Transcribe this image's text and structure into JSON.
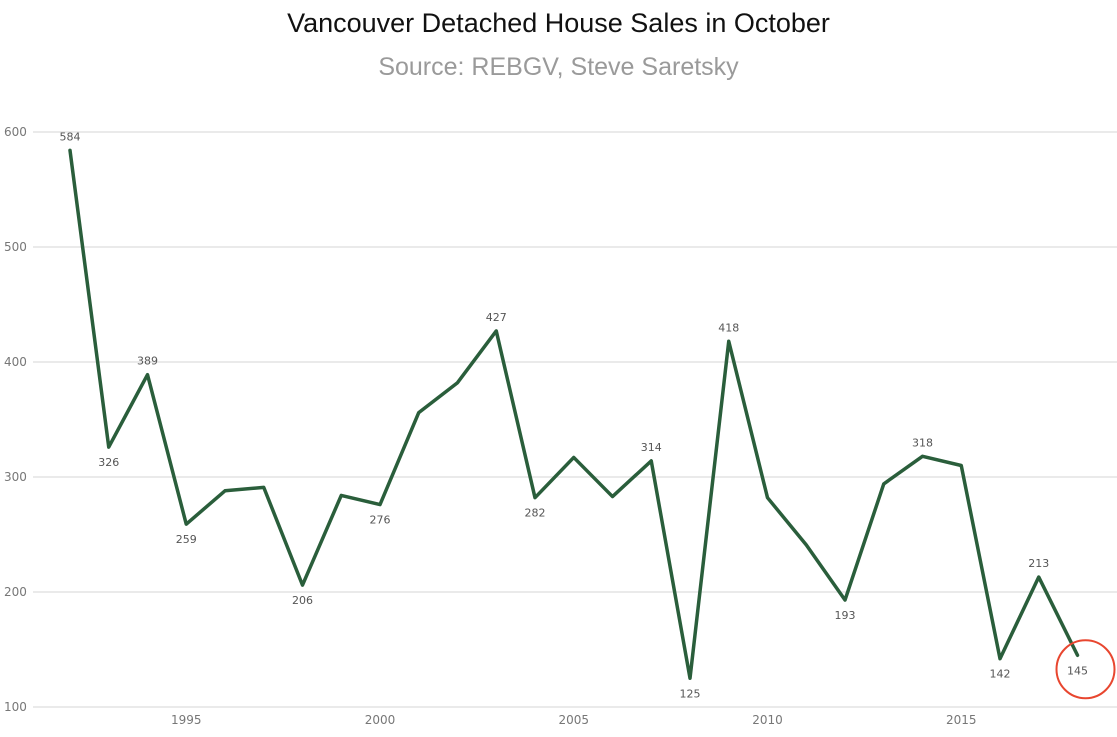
{
  "chart_data": {
    "type": "line",
    "title": "Vancouver Detached House Sales in October",
    "subtitle": "Source: REBGV, Steve Saretsky",
    "xlabel": "",
    "ylabel": "",
    "x": [
      1992,
      1993,
      1994,
      1995,
      1996,
      1997,
      1998,
      1999,
      2000,
      2001,
      2002,
      2003,
      2004,
      2005,
      2006,
      2007,
      2008,
      2009,
      2010,
      2011,
      2012,
      2013,
      2014,
      2015,
      2016,
      2017,
      2018
    ],
    "values": [
      584,
      326,
      389,
      259,
      288,
      291,
      206,
      284,
      276,
      356,
      382,
      427,
      282,
      317,
      283,
      314,
      125,
      418,
      282,
      241,
      193,
      294,
      318,
      310,
      142,
      213,
      145
    ],
    "point_labels": [
      "584",
      "326",
      "389",
      "259",
      "",
      "",
      "206",
      "",
      "276",
      "",
      "",
      "427",
      "282",
      "",
      "",
      "314",
      "125",
      "418",
      "",
      "",
      "193",
      "",
      "318",
      "",
      "142",
      "213",
      "145"
    ],
    "xticks": [
      1995,
      2000,
      2005,
      2010,
      2015
    ],
    "yticks": [
      100,
      200,
      300,
      400,
      500,
      600
    ],
    "xlim": [
      1991.6,
      2019.1
    ],
    "ylim": [
      100,
      600
    ],
    "grid": true,
    "line_color": "#2a5e3b",
    "highlight": {
      "year": 2018,
      "color": "#e8462f"
    }
  }
}
